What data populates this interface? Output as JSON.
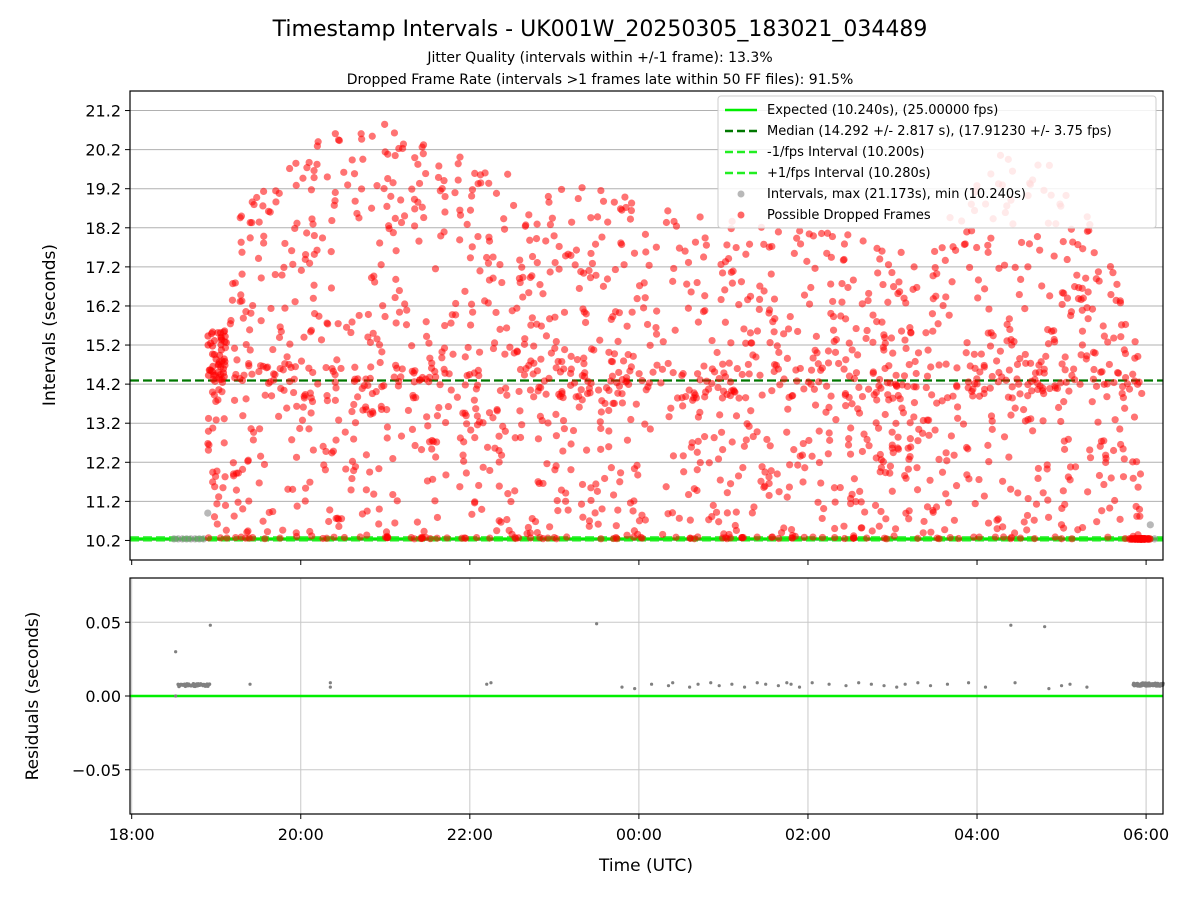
{
  "chart_data": [
    {
      "type": "scatter",
      "title": "Timestamp Intervals - UK001W_20250305_183021_034489",
      "subtitle_lines": [
        "Jitter Quality (intervals within +/-1 frame): 13.3%",
        "Dropped Frame Rate (intervals >1 frames late within 50 FF files): 91.5%"
      ],
      "ylabel": "Intervals (seconds)",
      "xlim": [
        -0.02,
        12.2
      ],
      "ylim": [
        9.7,
        21.7
      ],
      "y_ticks": [
        10.2,
        11.2,
        12.2,
        13.2,
        14.2,
        15.2,
        16.2,
        17.2,
        18.2,
        19.2,
        20.2,
        21.2
      ],
      "x_ticks": [
        0,
        2,
        4,
        6,
        8,
        10,
        12
      ],
      "grid": true,
      "legend_position": "top-right",
      "reference_lines": [
        {
          "name": "Expected (10.240s), (25.00000 fps)",
          "y": 10.24,
          "style": "solid",
          "color": "#00ee00"
        },
        {
          "name": "Median (14.292 +/- 2.817 s), (17.91230 +/- 3.75 fps)",
          "y": 14.292,
          "style": "dashed",
          "color": "#007700"
        },
        {
          "name": "-1/fps Interval (10.200s)",
          "y": 10.2,
          "style": "dashed",
          "color": "#22ee22"
        },
        {
          "name": "+1/fps Interval (10.280s)",
          "y": 10.28,
          "style": "dashed",
          "color": "#22ee22"
        }
      ],
      "series": [
        {
          "name": "Intervals, max (21.173s), min (10.240s)",
          "color": "#888888",
          "points": [
            [
              0.5,
              10.24
            ],
            [
              0.55,
              10.24
            ],
            [
              0.6,
              10.24
            ],
            [
              0.65,
              10.24
            ],
            [
              0.7,
              10.24
            ],
            [
              0.75,
              10.24
            ],
            [
              0.8,
              10.24
            ],
            [
              0.85,
              10.24
            ],
            [
              0.9,
              10.9
            ],
            [
              11.95,
              10.24
            ],
            [
              12.0,
              10.24
            ],
            [
              12.05,
              10.6
            ],
            [
              12.1,
              10.24
            ]
          ]
        },
        {
          "name": "Possible Dropped Frames",
          "color": "#ff0000",
          "generated": {
            "x_start": 0.9,
            "x_end": 11.95,
            "count": 1800,
            "min": 10.24,
            "max": 21.173,
            "seed": 34489
          }
        }
      ]
    },
    {
      "type": "scatter",
      "xlabel": "Time (UTC)",
      "ylabel": "Residuals (seconds)",
      "xlim": [
        -0.02,
        12.2
      ],
      "ylim": [
        -0.08,
        0.08
      ],
      "y_ticks": [
        0.05,
        0.0,
        -0.05
      ],
      "y_tick_labels": [
        "0.05",
        "0.00",
        "−0.05"
      ],
      "x_ticks": [
        0,
        2,
        4,
        6,
        8,
        10,
        12
      ],
      "x_tick_labels": [
        "18:00",
        "20:00",
        "22:00",
        "00:00",
        "02:00",
        "04:00",
        "06:00"
      ],
      "grid": true,
      "reference_lines": [
        {
          "y": 0.0,
          "style": "solid",
          "color": "#00ee00"
        }
      ],
      "series": [
        {
          "color": "#808080",
          "points": [
            [
              0.52,
              0.03
            ],
            [
              0.52,
              0.0
            ],
            [
              0.93,
              0.048
            ],
            [
              1.4,
              0.008
            ],
            [
              2.35,
              0.009
            ],
            [
              2.35,
              0.006
            ],
            [
              4.2,
              0.008
            ],
            [
              4.25,
              0.009
            ],
            [
              5.5,
              0.049
            ],
            [
              5.8,
              0.006
            ],
            [
              5.95,
              0.005
            ],
            [
              6.15,
              0.008
            ],
            [
              6.35,
              0.007
            ],
            [
              6.4,
              0.009
            ],
            [
              6.6,
              0.006
            ],
            [
              6.7,
              0.008
            ],
            [
              6.85,
              0.009
            ],
            [
              6.95,
              0.007
            ],
            [
              7.1,
              0.008
            ],
            [
              7.25,
              0.006
            ],
            [
              7.4,
              0.009
            ],
            [
              7.5,
              0.008
            ],
            [
              7.65,
              0.007
            ],
            [
              7.75,
              0.009
            ],
            [
              7.8,
              0.008
            ],
            [
              7.9,
              0.006
            ],
            [
              8.05,
              0.009
            ],
            [
              8.25,
              0.008
            ],
            [
              8.45,
              0.007
            ],
            [
              8.6,
              0.009
            ],
            [
              8.75,
              0.008
            ],
            [
              8.9,
              0.007
            ],
            [
              9.05,
              0.006
            ],
            [
              9.15,
              0.008
            ],
            [
              9.3,
              0.009
            ],
            [
              9.45,
              0.007
            ],
            [
              9.65,
              0.008
            ],
            [
              9.9,
              0.009
            ],
            [
              10.1,
              0.006
            ],
            [
              10.4,
              0.048
            ],
            [
              10.45,
              0.009
            ],
            [
              10.8,
              0.047
            ],
            [
              10.85,
              0.005
            ],
            [
              11.0,
              0.007
            ],
            [
              11.1,
              0.008
            ],
            [
              11.3,
              0.006
            ]
          ],
          "clusters": [
            {
              "x_start": 0.55,
              "x_end": 0.92,
              "y": 0.0075,
              "count": 40
            },
            {
              "x_start": 11.85,
              "x_end": 12.2,
              "y": 0.0078,
              "count": 90
            }
          ]
        }
      ]
    }
  ]
}
